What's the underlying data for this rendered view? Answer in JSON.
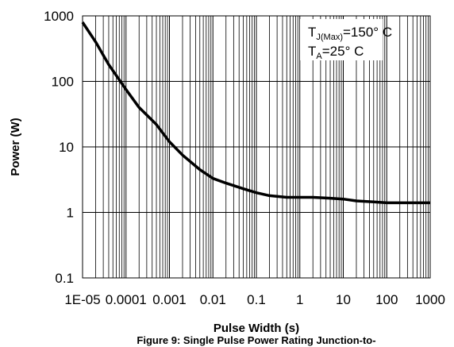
{
  "chart_data": {
    "type": "line",
    "xlabel": "Pulse Width (s)",
    "ylabel": "Power (W)",
    "x_scale": "log",
    "y_scale": "log",
    "xlim": [
      1e-05,
      1000
    ],
    "ylim": [
      0.1,
      1000
    ],
    "x_ticks": [
      "1E-05",
      "0.0001",
      "0.001",
      "0.01",
      "0.1",
      "1",
      "10",
      "100",
      "1000"
    ],
    "y_ticks": [
      "1000",
      "100",
      "10",
      "1",
      "0.1"
    ],
    "grid": "minor+major",
    "series": [
      {
        "x": [
          1e-05,
          2e-05,
          4e-05,
          0.0001,
          0.0002,
          0.0005,
          0.001,
          0.002,
          0.005,
          0.01,
          0.02,
          0.05,
          0.1,
          0.2,
          0.5,
          1,
          2,
          5,
          10,
          20,
          50,
          100,
          200,
          500,
          1000
        ],
        "y": [
          800,
          400,
          180,
          75,
          40,
          22,
          12,
          7.5,
          4.5,
          3.3,
          2.8,
          2.3,
          2.0,
          1.8,
          1.7,
          1.7,
          1.7,
          1.65,
          1.6,
          1.5,
          1.45,
          1.4,
          1.4,
          1.4,
          1.4
        ]
      }
    ],
    "color": "#000000"
  },
  "annotation": {
    "line1_main": "T",
    "line1_sub": "J(Max)",
    "line1_rest": "=150° C",
    "line2_main": "T",
    "line2_sub": "A",
    "line2_rest": "=25° C"
  },
  "caption": "Figure 9: Single Pulse Power Rating  Junction-to-"
}
